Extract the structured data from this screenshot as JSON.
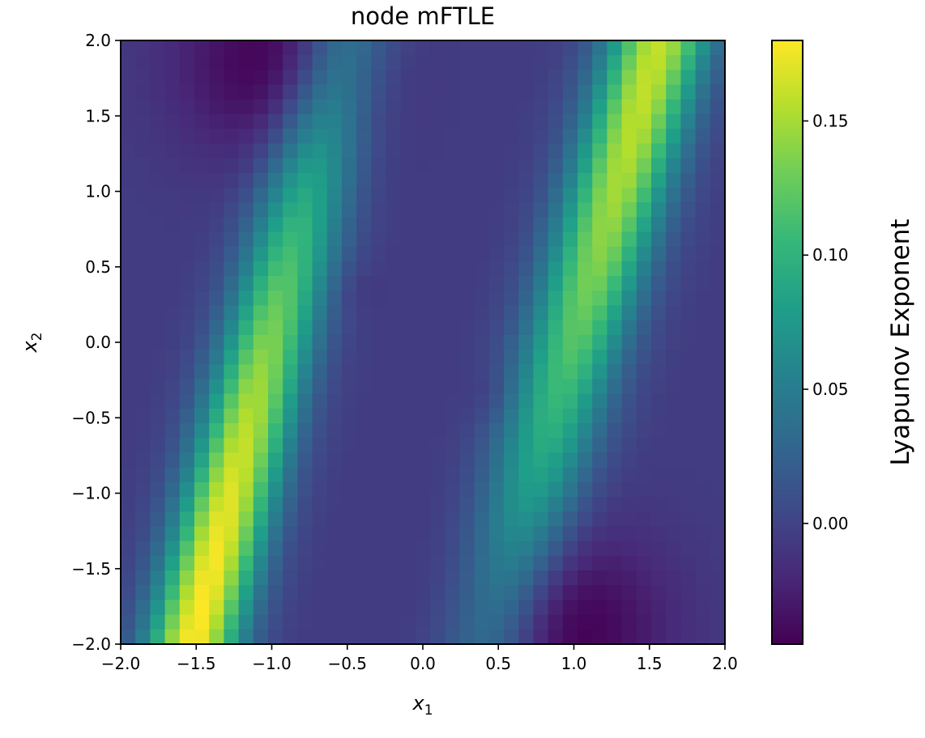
{
  "chart_data": {
    "type": "heatmap",
    "title": "node mFTLE",
    "xlabel": {
      "base": "x",
      "sub": "1"
    },
    "ylabel": {
      "base": "x",
      "sub": "2"
    },
    "xlim": [
      -2.0,
      2.0
    ],
    "ylim": [
      -2.0,
      2.0
    ],
    "x_ticks": [
      -2.0,
      -1.5,
      -1.0,
      -0.5,
      0.0,
      0.5,
      1.0,
      1.5,
      2.0
    ],
    "x_tick_labels": [
      "−2.0",
      "−1.5",
      "−1.0",
      "−0.5",
      "0.0",
      "0.5",
      "1.0",
      "1.5",
      "2.0"
    ],
    "y_ticks": [
      -2.0,
      -1.5,
      -1.0,
      -0.5,
      0.0,
      0.5,
      1.0,
      1.5,
      2.0
    ],
    "y_tick_labels": [
      "−2.0",
      "−1.5",
      "−1.0",
      "−0.5",
      "0.0",
      "0.5",
      "1.0",
      "1.5",
      "2.0"
    ],
    "grid": false,
    "colormap": "viridis",
    "colorbar": {
      "label": "Lyapunov Exponent",
      "vmin": -0.045,
      "vmax": 0.18,
      "ticks": [
        0.0,
        0.05,
        0.1,
        0.15
      ],
      "tick_labels": [
        "0.00",
        "0.05",
        "0.10",
        "0.15"
      ]
    },
    "grid_resolution": 41,
    "field_description": {
      "background": -0.005,
      "ridges": [
        {
          "center": [
            -1.5,
            -1.9
          ],
          "direction_dx_per_dy": 0.25,
          "peak": 0.18,
          "width": 0.22
        },
        {
          "center": [
            1.55,
            1.95
          ],
          "direction_dx_per_dy": 0.28,
          "peak": 0.16,
          "width": 0.24
        }
      ],
      "troughs": [
        {
          "center": [
            -1.0,
            1.85
          ],
          "value": -0.045
        },
        {
          "center": [
            1.0,
            -1.9
          ],
          "value": -0.045
        },
        {
          "center": [
            -0.45,
            0.35
          ],
          "value": -0.012
        },
        {
          "center": [
            0.45,
            -0.35
          ],
          "value": -0.012
        }
      ]
    }
  }
}
